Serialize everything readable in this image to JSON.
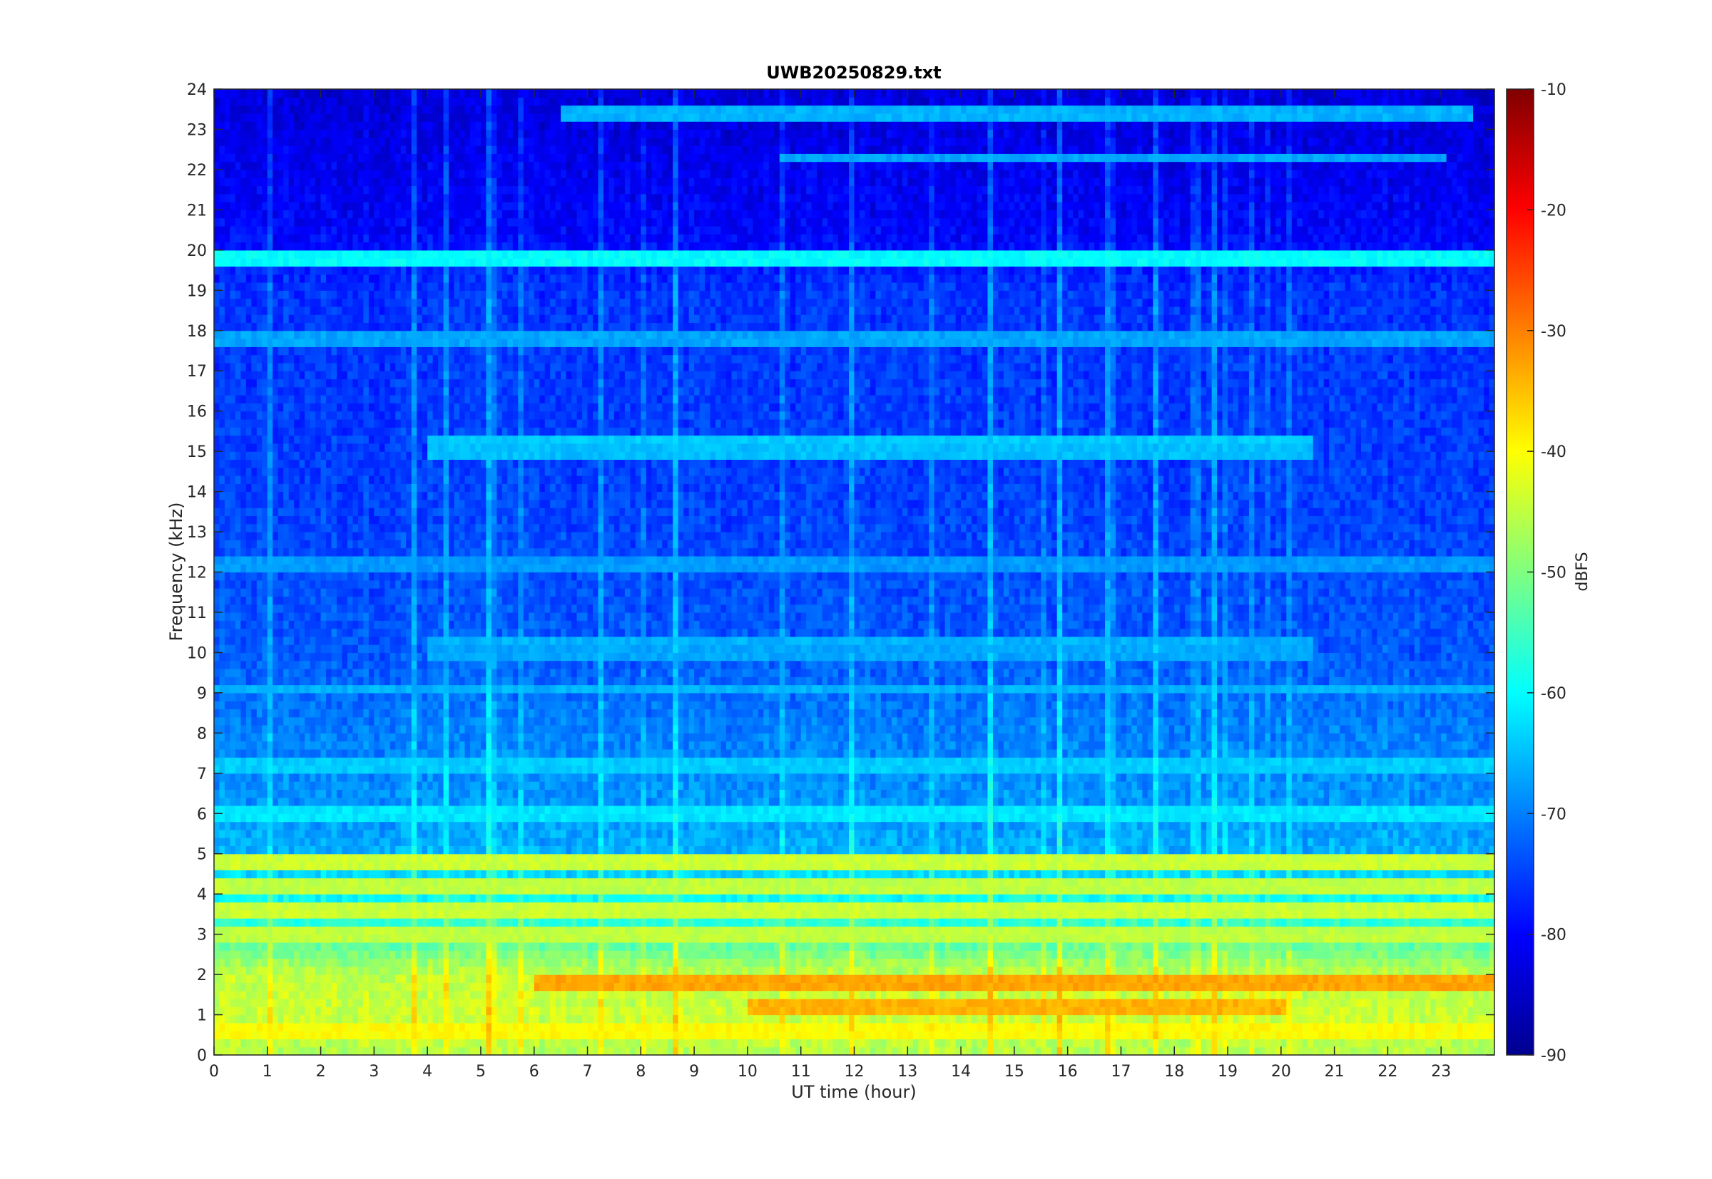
{
  "chart_data": {
    "type": "heatmap",
    "title": "UWB20250829.txt",
    "xlabel": "UT time (hour)",
    "ylabel": "Frequency (kHz)",
    "xlim": [
      0,
      24
    ],
    "ylim": [
      0,
      24
    ],
    "x_ticks": [
      "0",
      "1",
      "2",
      "3",
      "4",
      "5",
      "6",
      "7",
      "8",
      "9",
      "10",
      "11",
      "12",
      "13",
      "14",
      "15",
      "16",
      "17",
      "18",
      "19",
      "20",
      "21",
      "22",
      "23"
    ],
    "y_ticks": [
      "0",
      "1",
      "2",
      "3",
      "4",
      "5",
      "6",
      "7",
      "8",
      "9",
      "10",
      "11",
      "12",
      "13",
      "14",
      "15",
      "16",
      "17",
      "18",
      "19",
      "20",
      "21",
      "22",
      "23",
      "24"
    ],
    "colormap": "jet",
    "colorbar": {
      "label": "dBFS",
      "range": [
        -90,
        -10
      ],
      "ticks": [
        "-10",
        "-20",
        "-30",
        "-40",
        "-50",
        "-60",
        "-70",
        "-80",
        "-90"
      ]
    },
    "background_profile_dbfs": [
      {
        "f_khz": 0.0,
        "dbfs": -46
      },
      {
        "f_khz": 1.0,
        "dbfs": -44
      },
      {
        "f_khz": 2.0,
        "dbfs": -45
      },
      {
        "f_khz": 3.0,
        "dbfs": -55
      },
      {
        "f_khz": 4.0,
        "dbfs": -60
      },
      {
        "f_khz": 5.0,
        "dbfs": -66
      },
      {
        "f_khz": 6.0,
        "dbfs": -68
      },
      {
        "f_khz": 8.0,
        "dbfs": -70
      },
      {
        "f_khz": 10.0,
        "dbfs": -73
      },
      {
        "f_khz": 14.0,
        "dbfs": -75
      },
      {
        "f_khz": 19.0,
        "dbfs": -76
      },
      {
        "f_khz": 20.5,
        "dbfs": -80
      },
      {
        "f_khz": 24.0,
        "dbfs": -83
      }
    ],
    "tone_lines": [
      {
        "f_khz": 19.8,
        "t_start": 0,
        "t_end": 24,
        "dbfs": -60
      },
      {
        "f_khz": 23.4,
        "t_start": 6.5,
        "t_end": 23.5,
        "dbfs": -66
      },
      {
        "f_khz": 22.3,
        "t_start": 10.6,
        "t_end": 23,
        "dbfs": -67
      },
      {
        "f_khz": 17.8,
        "t_start": 0,
        "t_end": 24,
        "dbfs": -67
      },
      {
        "f_khz": 15.3,
        "t_start": 4,
        "t_end": 20.5,
        "dbfs": -64
      },
      {
        "f_khz": 15.0,
        "t_start": 4,
        "t_end": 20.5,
        "dbfs": -65
      },
      {
        "f_khz": 12.2,
        "t_start": 0,
        "t_end": 24,
        "dbfs": -68
      },
      {
        "f_khz": 10.3,
        "t_start": 4,
        "t_end": 20.5,
        "dbfs": -66
      },
      {
        "f_khz": 10.0,
        "t_start": 4,
        "t_end": 20.5,
        "dbfs": -67
      },
      {
        "f_khz": 9.1,
        "t_start": 0,
        "t_end": 24,
        "dbfs": -66
      },
      {
        "f_khz": 7.2,
        "t_start": 0,
        "t_end": 24,
        "dbfs": -64
      },
      {
        "f_khz": 6.0,
        "t_start": 0,
        "t_end": 24,
        "dbfs": -62
      },
      {
        "f_khz": 4.8,
        "t_start": 0,
        "t_end": 24,
        "dbfs": -44
      },
      {
        "f_khz": 4.2,
        "t_start": 0,
        "t_end": 24,
        "dbfs": -45
      },
      {
        "f_khz": 3.6,
        "t_start": 0,
        "t_end": 24,
        "dbfs": -44
      },
      {
        "f_khz": 3.0,
        "t_start": 0,
        "t_end": 24,
        "dbfs": -45
      },
      {
        "f_khz": 1.8,
        "t_start": 6,
        "t_end": 24,
        "dbfs": -33
      },
      {
        "f_khz": 1.2,
        "t_start": 10,
        "t_end": 20,
        "dbfs": -34
      },
      {
        "f_khz": 0.6,
        "t_start": 0,
        "t_end": 24,
        "dbfs": -40
      }
    ]
  }
}
